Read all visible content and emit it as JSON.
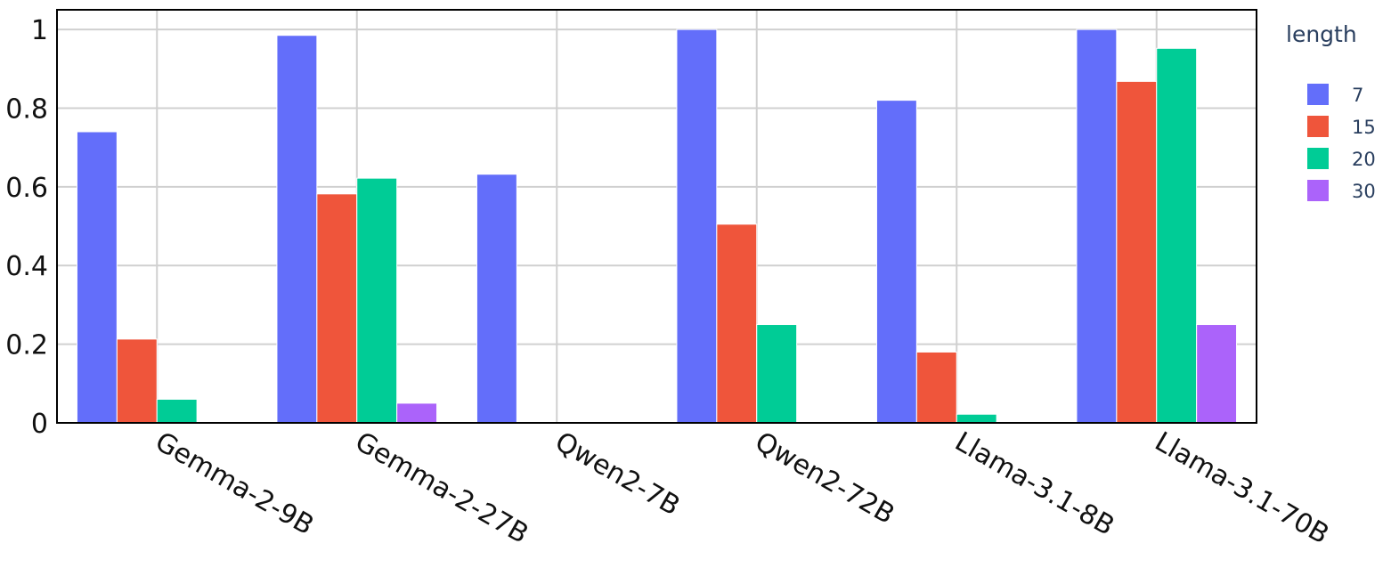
{
  "chart_data": {
    "type": "bar",
    "title": "",
    "xlabel": "",
    "ylabel": "",
    "ylim": [
      0,
      1.05
    ],
    "yticks": [
      0,
      0.2,
      0.4,
      0.6,
      0.8,
      1
    ],
    "ytick_labels": [
      "0",
      "0.2",
      "0.4",
      "0.6",
      "0.8",
      "1"
    ],
    "grid": true,
    "categories": [
      "Gemma-2-9B",
      "Gemma-2-27B",
      "Qwen2-7B",
      "Qwen2-72B",
      "Llama-3.1-8B",
      "Llama-3.1-70B"
    ],
    "legend": {
      "title": "length",
      "placement": "right"
    },
    "series": [
      {
        "name": "7",
        "color": "#636efa",
        "values": [
          0.74,
          0.985,
          0.632,
          1.0,
          0.82,
          1.0
        ]
      },
      {
        "name": "15",
        "color": "#ef553b",
        "values": [
          0.213,
          0.582,
          0.0,
          0.505,
          0.18,
          0.868
        ]
      },
      {
        "name": "20",
        "color": "#00cc96",
        "values": [
          0.06,
          0.622,
          0.0,
          0.25,
          0.022,
          0.952
        ]
      },
      {
        "name": "30",
        "color": "#ab63fa",
        "values": [
          0.0,
          0.05,
          0.0,
          0.0,
          0.003,
          0.25
        ]
      }
    ]
  }
}
